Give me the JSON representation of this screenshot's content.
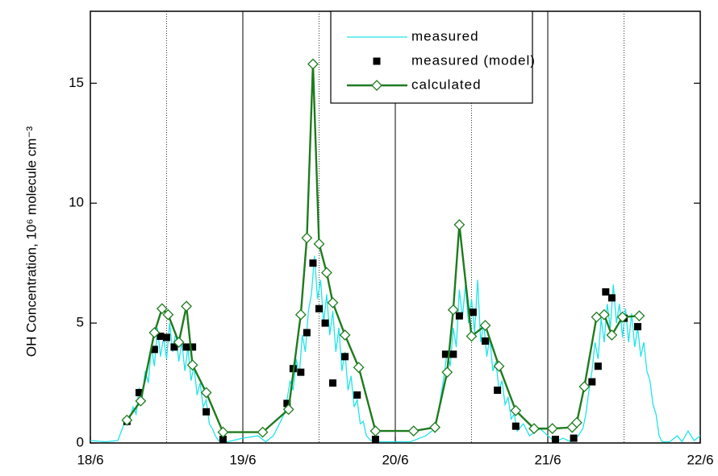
{
  "chart_data": {
    "type": "line",
    "y_label": "OH Concentration, 10⁶ molecule cm⁻³",
    "xlim": [
      18,
      22
    ],
    "xticks": [
      {
        "value": 18,
        "label": "18/6"
      },
      {
        "value": 19,
        "label": "19/6"
      },
      {
        "value": 20,
        "label": "20/6"
      },
      {
        "value": 21,
        "label": "21/6"
      },
      {
        "value": 22,
        "label": "22/6"
      }
    ],
    "ylim": [
      0,
      18
    ],
    "yticks": [
      0,
      5,
      10,
      15
    ],
    "grid": true,
    "minor_grid_dotted": true,
    "legend": "upper center",
    "series": [
      {
        "name": "measured",
        "color": "#22e4e8",
        "mode": "line",
        "x": [
          18.0,
          18.1,
          18.18,
          18.21,
          18.23,
          18.25,
          18.28,
          18.3,
          18.32,
          18.34,
          18.36,
          18.38,
          18.4,
          18.42,
          18.44,
          18.46,
          18.48,
          18.5,
          18.52,
          18.54,
          18.56,
          18.58,
          18.6,
          18.62,
          18.64,
          18.66,
          18.68,
          18.7,
          18.72,
          18.74,
          18.76,
          18.78,
          18.8,
          18.82,
          18.84,
          18.9,
          19.0,
          19.1,
          19.15,
          19.2,
          19.24,
          19.27,
          19.29,
          19.31,
          19.33,
          19.35,
          19.37,
          19.39,
          19.41,
          19.43,
          19.45,
          19.47,
          19.49,
          19.51,
          19.53,
          19.55,
          19.57,
          19.59,
          19.61,
          19.63,
          19.65,
          19.67,
          19.69,
          19.71,
          19.73,
          19.75,
          19.77,
          19.79,
          19.81,
          19.84,
          19.9,
          20.0,
          20.1,
          20.2,
          20.26,
          20.28,
          20.3,
          20.32,
          20.34,
          20.36,
          20.38,
          20.4,
          20.42,
          20.44,
          20.46,
          20.48,
          20.5,
          20.52,
          20.54,
          20.56,
          20.58,
          20.6,
          20.62,
          20.64,
          20.66,
          20.68,
          20.7,
          20.72,
          20.74,
          20.76,
          20.78,
          20.8,
          20.84,
          20.88,
          20.95,
          21.0,
          21.05,
          21.1,
          21.15,
          21.2,
          21.23,
          21.25,
          21.27,
          21.29,
          21.31,
          21.33,
          21.35,
          21.37,
          21.39,
          21.41,
          21.43,
          21.45,
          21.47,
          21.49,
          21.51,
          21.53,
          21.55,
          21.57,
          21.59,
          21.61,
          21.63,
          21.65,
          21.67,
          21.69,
          21.71,
          21.73,
          21.75,
          21.8,
          21.85,
          21.88,
          21.92,
          21.96,
          22.0
        ],
        "values": [
          0.1,
          0.05,
          0.1,
          0.6,
          1.0,
          0.8,
          1.5,
          1.2,
          2.3,
          1.9,
          3.0,
          2.5,
          4.0,
          3.2,
          4.8,
          3.6,
          4.4,
          3.5,
          5.0,
          3.8,
          4.6,
          3.4,
          4.2,
          3.0,
          4.0,
          2.6,
          3.2,
          2.0,
          2.5,
          1.5,
          1.8,
          0.8,
          0.6,
          0.3,
          0.1,
          0.05,
          0.2,
          0.3,
          0.05,
          0.3,
          0.8,
          1.2,
          1.8,
          2.6,
          2.2,
          3.5,
          2.8,
          4.5,
          3.8,
          5.5,
          6.2,
          7.8,
          6.0,
          6.8,
          5.0,
          6.2,
          4.5,
          5.5,
          3.8,
          4.8,
          3.0,
          3.8,
          2.2,
          2.8,
          1.5,
          1.8,
          0.8,
          0.9,
          0.3,
          0.1,
          0.05,
          0.05,
          0.05,
          0.3,
          0.6,
          1.2,
          2.0,
          2.8,
          3.8,
          3.2,
          4.8,
          4.0,
          6.4,
          5.2,
          6.6,
          5.0,
          6.0,
          4.6,
          6.8,
          4.2,
          5.0,
          3.6,
          4.4,
          3.0,
          3.4,
          2.2,
          2.6,
          1.6,
          1.9,
          1.0,
          1.2,
          0.5,
          0.8,
          0.3,
          0.6,
          0.3,
          0.05,
          0.2,
          0.05,
          0.3,
          0.6,
          1.2,
          2.2,
          3.0,
          4.2,
          3.5,
          5.2,
          4.2,
          5.8,
          4.8,
          6.6,
          5.0,
          5.8,
          4.4,
          5.6,
          4.2,
          5.4,
          4.0,
          4.8,
          3.6,
          4.2,
          3.0,
          2.6,
          1.6,
          1.2,
          0.3,
          0.05,
          0.05,
          0.3,
          0.05,
          0.5,
          0.1,
          0.3
        ]
      },
      {
        "name": "measured (model)",
        "color": "#000000",
        "mode": "markers",
        "marker": "square",
        "x": [
          18.24,
          18.32,
          18.42,
          18.46,
          18.5,
          18.55,
          18.63,
          18.67,
          18.76,
          18.87,
          19.29,
          19.33,
          19.38,
          19.42,
          19.46,
          19.5,
          19.54,
          19.59,
          19.67,
          19.75,
          19.87,
          20.33,
          20.38,
          20.42,
          20.51,
          20.59,
          20.67,
          20.79,
          21.05,
          21.17,
          21.29,
          21.33,
          21.38,
          21.42,
          21.5,
          21.59
        ],
        "values": [
          0.9,
          2.1,
          3.9,
          4.45,
          4.4,
          4.0,
          4.0,
          4.0,
          1.3,
          0.15,
          1.65,
          3.1,
          2.95,
          4.6,
          7.5,
          5.6,
          5.0,
          2.5,
          3.6,
          2.0,
          0.15,
          3.7,
          3.7,
          5.3,
          5.45,
          4.25,
          2.2,
          0.7,
          0.15,
          0.2,
          2.55,
          3.2,
          6.3,
          6.05,
          5.2,
          4.85
        ]
      },
      {
        "name": "calculated",
        "color": "#1e7b1e",
        "mode": "line+markers",
        "marker": "diamond",
        "x": [
          18.24,
          18.33,
          18.42,
          18.47,
          18.51,
          18.58,
          18.63,
          18.67,
          18.76,
          18.87,
          19.13,
          19.3,
          19.38,
          19.42,
          19.46,
          19.5,
          19.55,
          19.59,
          19.67,
          19.76,
          19.87,
          20.12,
          20.26,
          20.34,
          20.38,
          20.42,
          20.5,
          20.59,
          20.68,
          20.79,
          20.91,
          21.03,
          21.16,
          21.19,
          21.24,
          21.32,
          21.37,
          21.42,
          21.49,
          21.6
        ],
        "values": [
          0.95,
          1.75,
          4.6,
          5.6,
          5.35,
          4.2,
          5.7,
          3.25,
          2.1,
          0.45,
          0.45,
          1.4,
          5.35,
          8.55,
          15.8,
          8.3,
          7.1,
          5.85,
          4.5,
          3.15,
          0.5,
          0.5,
          0.65,
          2.95,
          5.55,
          9.1,
          4.45,
          4.9,
          3.2,
          1.35,
          0.6,
          0.6,
          0.65,
          0.85,
          2.35,
          5.25,
          5.35,
          4.5,
          5.25,
          5.3
        ]
      }
    ]
  }
}
